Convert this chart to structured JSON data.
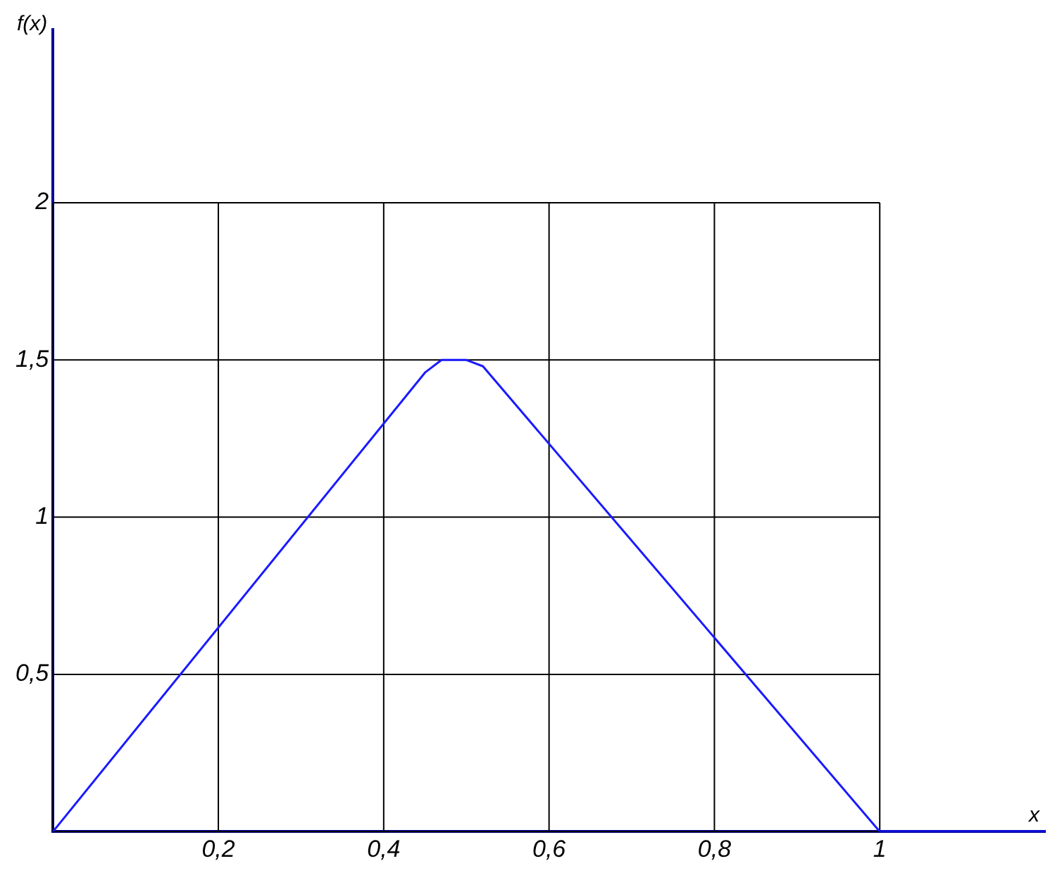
{
  "chart_data": {
    "type": "line",
    "xlabel": "x",
    "ylabel": "f(x)",
    "x": [
      0,
      0.45,
      0.47,
      0.5,
      0.52,
      1,
      1.2
    ],
    "series": [
      {
        "color": "#1a1aff",
        "values": [
          0,
          1.46,
          1.5,
          1.5,
          1.48,
          0,
          0
        ]
      }
    ],
    "xlim": [
      0,
      1.2
    ],
    "ylim": [
      0,
      2.55
    ],
    "xticks": [
      {
        "value": 0,
        "label": null
      },
      {
        "value": 0.2,
        "label": "0,2"
      },
      {
        "value": 0.4,
        "label": "0,4"
      },
      {
        "value": 0.6,
        "label": "0,6"
      },
      {
        "value": 0.8,
        "label": "0,8"
      },
      {
        "value": 1,
        "label": "1"
      }
    ],
    "yticks": [
      {
        "value": 0,
        "label": null
      },
      {
        "value": 0.5,
        "label": "0,5"
      },
      {
        "value": 1,
        "label": "1"
      },
      {
        "value": 1.5,
        "label": "1,5"
      },
      {
        "value": 2,
        "label": "2"
      }
    ],
    "grid": true,
    "legend": false,
    "marker": "none",
    "line_style": "solid"
  }
}
